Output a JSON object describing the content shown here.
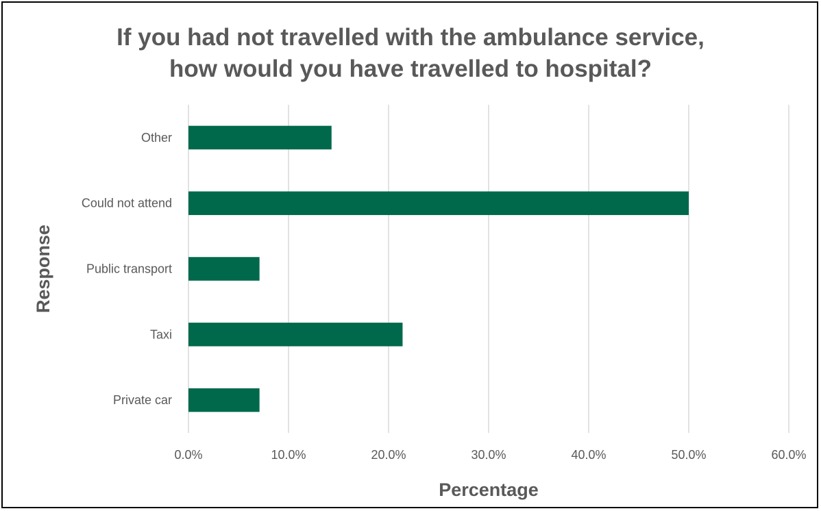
{
  "chart_data": {
    "type": "bar",
    "orientation": "horizontal",
    "title": [
      "If you had not travelled with the ambulance service,",
      "how would you have travelled to hospital?"
    ],
    "xlabel": "Percentage",
    "ylabel": "Response",
    "categories": [
      "Other",
      "Could not attend",
      "Public transport",
      "Taxi",
      "Private car"
    ],
    "values": [
      14.3,
      50.0,
      7.1,
      21.4,
      7.1
    ],
    "xlim": [
      0,
      60
    ],
    "xticks": [
      0,
      10,
      20,
      30,
      40,
      50,
      60
    ],
    "xtick_labels": [
      "0.0%",
      "10.0%",
      "20.0%",
      "30.0%",
      "40.0%",
      "50.0%",
      "60.0%"
    ],
    "grid": "vertical",
    "legend": "none",
    "bar_color": "#00694B",
    "gridline_color": "#D9D9D9"
  }
}
